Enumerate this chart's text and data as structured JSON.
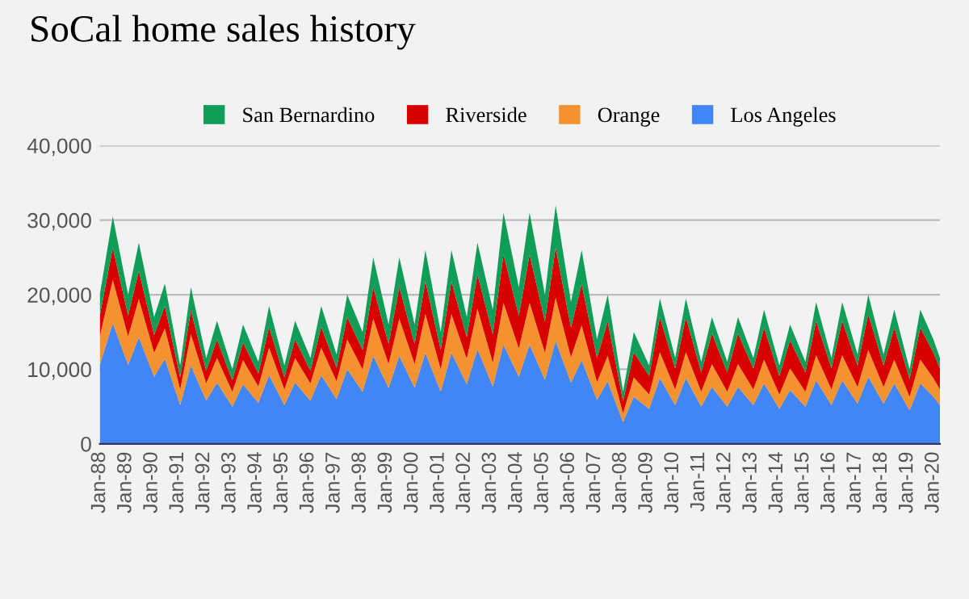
{
  "chart_data": {
    "type": "area",
    "title": "SoCal home sales history",
    "stacked": true,
    "x": [
      "1988-01",
      "1988-07",
      "1989-02",
      "1989-07",
      "1990-02",
      "1990-07",
      "1991-02",
      "1991-07",
      "1992-02",
      "1992-07",
      "1993-02",
      "1993-07",
      "1994-02",
      "1994-07",
      "1995-02",
      "1995-07",
      "1996-02",
      "1996-07",
      "1997-02",
      "1997-07",
      "1998-02",
      "1998-07",
      "1999-02",
      "1999-07",
      "2000-02",
      "2000-07",
      "2001-02",
      "2001-07",
      "2002-02",
      "2002-07",
      "2003-02",
      "2003-07",
      "2004-02",
      "2004-07",
      "2005-02",
      "2005-07",
      "2006-02",
      "2006-07",
      "2007-02",
      "2007-07",
      "2008-02",
      "2008-07",
      "2009-02",
      "2009-07",
      "2010-02",
      "2010-07",
      "2011-02",
      "2011-07",
      "2012-02",
      "2012-07",
      "2013-02",
      "2013-07",
      "2014-02",
      "2014-07",
      "2015-02",
      "2015-07",
      "2016-02",
      "2016-07",
      "2017-02",
      "2017-07",
      "2018-02",
      "2018-07",
      "2019-02",
      "2019-07",
      "2020-01",
      "2020-04"
    ],
    "series": [
      {
        "name": "Los Angeles",
        "color": "#4285f4",
        "values": [
          10600,
          16200,
          10600,
          14300,
          9000,
          11400,
          5200,
          10500,
          5800,
          8200,
          5000,
          8000,
          5500,
          9200,
          5200,
          8200,
          5800,
          9200,
          6000,
          10000,
          7000,
          11800,
          7500,
          11800,
          7500,
          12200,
          7000,
          12200,
          8000,
          12700,
          7700,
          13300,
          9000,
          13300,
          8600,
          13800,
          8200,
          11200,
          5900,
          8400,
          2900,
          6300,
          4700,
          8800,
          5200,
          8800,
          5000,
          7600,
          5000,
          7600,
          5200,
          8100,
          4700,
          7200,
          5000,
          8500,
          5200,
          8500,
          5400,
          9000,
          5400,
          8100,
          4500,
          8100,
          6300,
          5200
        ]
      },
      {
        "name": "Orange",
        "color": "#f4922f",
        "values": [
          3800,
          5800,
          3800,
          5100,
          3200,
          4100,
          2100,
          4200,
          2300,
          3300,
          2000,
          3200,
          2200,
          3700,
          2100,
          3300,
          2300,
          3700,
          2400,
          4000,
          3000,
          5000,
          3200,
          5000,
          3200,
          5200,
          3000,
          5200,
          3400,
          5400,
          3200,
          5600,
          3800,
          5600,
          3600,
          5800,
          3400,
          4700,
          2400,
          3400,
          1200,
          2600,
          1900,
          3500,
          2100,
          3500,
          2000,
          3100,
          2000,
          3100,
          2100,
          3200,
          1900,
          2900,
          2000,
          3400,
          2100,
          3400,
          2200,
          3600,
          2200,
          3200,
          1800,
          3200,
          2500,
          2100
        ]
      },
      {
        "name": "Riverside",
        "color": "#d90000",
        "values": [
          2800,
          4300,
          2800,
          3800,
          2400,
          3000,
          1600,
          3200,
          1700,
          2500,
          1500,
          2400,
          1700,
          2800,
          1600,
          2500,
          1700,
          2800,
          1800,
          3000,
          2600,
          4200,
          2700,
          4200,
          2700,
          4400,
          2600,
          4400,
          2900,
          4600,
          3800,
          6500,
          4400,
          6500,
          4200,
          6700,
          4000,
          5500,
          3200,
          4600,
          1600,
          3400,
          2500,
          4700,
          2800,
          4700,
          2600,
          4100,
          2600,
          4100,
          2800,
          4300,
          2500,
          3800,
          2600,
          4600,
          2800,
          4600,
          2900,
          4800,
          2900,
          4300,
          2400,
          4300,
          3400,
          2800
        ]
      },
      {
        "name": "San Bernardino",
        "color": "#0f9d58",
        "values": [
          2800,
          4200,
          2800,
          3800,
          2400,
          3000,
          1600,
          3100,
          1700,
          2500,
          1500,
          2400,
          1600,
          2800,
          1600,
          2500,
          1700,
          2800,
          1800,
          3000,
          2400,
          4000,
          2600,
          4000,
          2600,
          4200,
          2400,
          4200,
          2700,
          4300,
          3300,
          5600,
          3800,
          5600,
          3600,
          5700,
          3400,
          4600,
          2500,
          3600,
          1300,
          2700,
          1400,
          2500,
          1400,
          2500,
          1400,
          2200,
          1400,
          2200,
          1400,
          2400,
          1400,
          2100,
          1400,
          2500,
          1400,
          2500,
          1500,
          2600,
          1500,
          2400,
          1300,
          2400,
          1800,
          1400
        ]
      }
    ],
    "ylim": [
      0,
      40000
    ],
    "yticks": [
      0,
      {
        "value": 10000,
        "label": "10,000"
      },
      {
        "value": 20000,
        "label": "20,000"
      },
      {
        "value": 30000,
        "label": "30,000"
      },
      {
        "value": 40000,
        "label": "40,000"
      }
    ],
    "xlim": [
      "1988-01",
      "2020-04"
    ],
    "xticks": [
      {
        "value": "1988-01",
        "label": "Jan-88"
      },
      {
        "value": "1989-01",
        "label": "Jan-89"
      },
      {
        "value": "1990-01",
        "label": "Jan-90"
      },
      {
        "value": "1991-01",
        "label": "Jan-91"
      },
      {
        "value": "1992-01",
        "label": "Jan-92"
      },
      {
        "value": "1993-01",
        "label": "Jan-93"
      },
      {
        "value": "1994-01",
        "label": "Jan-94"
      },
      {
        "value": "1995-01",
        "label": "Jan-95"
      },
      {
        "value": "1996-01",
        "label": "Jan-96"
      },
      {
        "value": "1997-01",
        "label": "Jan-97"
      },
      {
        "value": "1998-01",
        "label": "Jan-98"
      },
      {
        "value": "1999-01",
        "label": "Jan-99"
      },
      {
        "value": "2000-01",
        "label": "Jan-00"
      },
      {
        "value": "2001-01",
        "label": "Jan-01"
      },
      {
        "value": "2002-01",
        "label": "Jan-02"
      },
      {
        "value": "2003-01",
        "label": "Jan-03"
      },
      {
        "value": "2004-01",
        "label": "Jan-04"
      },
      {
        "value": "2005-01",
        "label": "Jan-05"
      },
      {
        "value": "2006-01",
        "label": "Jan-06"
      },
      {
        "value": "2007-01",
        "label": "Jan-07"
      },
      {
        "value": "2008-01",
        "label": "Jan-08"
      },
      {
        "value": "2009-01",
        "label": "Jan-09"
      },
      {
        "value": "2010-01",
        "label": "Jan-10"
      },
      {
        "value": "2011-01",
        "label": "Jan-11"
      },
      {
        "value": "2012-01",
        "label": "Jan-12"
      },
      {
        "value": "2013-01",
        "label": "Jan-13"
      },
      {
        "value": "2014-01",
        "label": "Jan-14"
      },
      {
        "value": "2015-01",
        "label": "Jan-15"
      },
      {
        "value": "2016-01",
        "label": "Jan-16"
      },
      {
        "value": "2017-01",
        "label": "Jan-17"
      },
      {
        "value": "2018-01",
        "label": "Jan-18"
      },
      {
        "value": "2019-01",
        "label": "Jan-19"
      },
      {
        "value": "2020-01",
        "label": "Jan-20"
      }
    ],
    "grid": "y",
    "legend": "top"
  }
}
